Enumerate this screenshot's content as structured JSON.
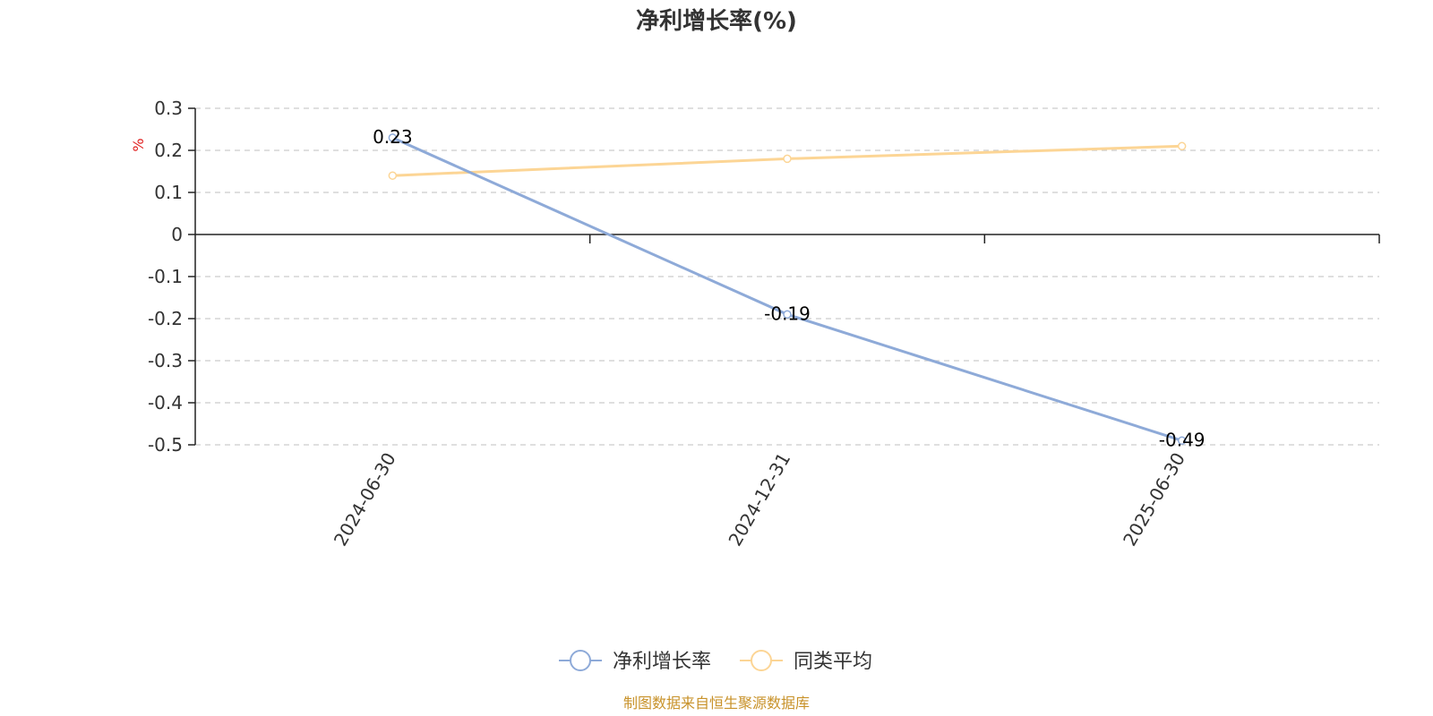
{
  "chart_data": {
    "type": "line",
    "title": "净利增长率(%)",
    "ylabel": "%",
    "categories": [
      "2024-06-30",
      "2024-12-31",
      "2025-06-30"
    ],
    "ylim": [
      -0.5,
      0.3
    ],
    "yticks": [
      0.3,
      0.2,
      0.1,
      0,
      -0.1,
      -0.2,
      -0.3,
      -0.4,
      -0.5
    ],
    "grid": true,
    "legend_position": "bottom-center",
    "series": [
      {
        "name": "净利增长率",
        "values": [
          0.23,
          -0.19,
          -0.49
        ],
        "color": "#8eaad8",
        "data_labels": [
          "0.23",
          "-0.19",
          "-0.49"
        ]
      },
      {
        "name": "同类平均",
        "values": [
          0.14,
          0.18,
          0.21
        ],
        "color": "#fcd595"
      }
    ]
  },
  "source_note": "制图数据来自恒生聚源数据库",
  "colors": {
    "unit_label": "#e02020",
    "source_note": "#c8922a",
    "axis": "#222222",
    "grid": "#cccccc"
  }
}
